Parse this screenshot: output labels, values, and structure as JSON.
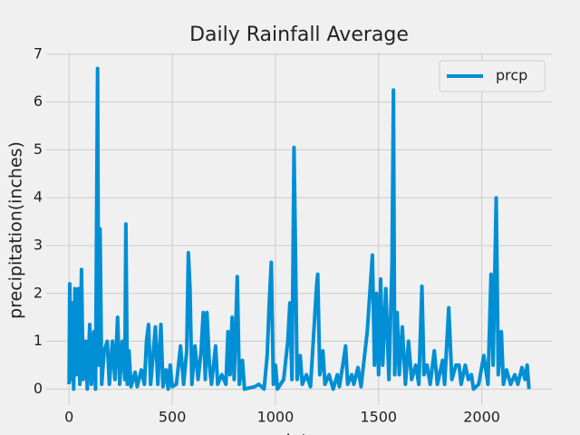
{
  "chart_data": {
    "type": "line",
    "title": "Daily Rainfall Average",
    "xlabel": "date",
    "ylabel": "precipitation(inches)",
    "x": [
      0,
      3,
      8,
      15,
      22,
      28,
      35,
      45,
      52,
      60,
      68,
      80,
      88,
      100,
      108,
      120,
      128,
      138,
      143,
      150,
      158,
      170,
      185,
      195,
      210,
      222,
      235,
      245,
      258,
      270,
      275,
      282,
      290,
      300,
      320,
      330,
      350,
      365,
      375,
      385,
      395,
      405,
      418,
      430,
      445,
      455,
      470,
      480,
      490,
      500,
      520,
      540,
      555,
      570,
      578,
      586,
      595,
      610,
      625,
      640,
      650,
      660,
      668,
      680,
      690,
      710,
      720,
      740,
      760,
      770,
      780,
      790,
      800,
      815,
      825,
      840,
      850,
      900,
      920,
      945,
      960,
      970,
      980,
      990,
      1000,
      1010,
      1040,
      1060,
      1070,
      1080,
      1090,
      1097,
      1105,
      1120,
      1130,
      1150,
      1170,
      1200,
      1205,
      1215,
      1230,
      1240,
      1260,
      1280,
      1300,
      1310,
      1330,
      1340,
      1350,
      1370,
      1380,
      1400,
      1415,
      1445,
      1470,
      1480,
      1490,
      1500,
      1510,
      1520,
      1535,
      1550,
      1565,
      1572,
      1578,
      1590,
      1600,
      1615,
      1630,
      1645,
      1660,
      1680,
      1695,
      1710,
      1720,
      1735,
      1750,
      1770,
      1785,
      1810,
      1820,
      1840,
      1855,
      1875,
      1890,
      1900,
      1920,
      1935,
      1950,
      1960,
      1985,
      2010,
      2030,
      2045,
      2055,
      2070,
      2080,
      2095,
      2105,
      2120,
      2140,
      2160,
      2175,
      2195,
      2210,
      2220,
      2229
    ],
    "series": [
      {
        "name": "prcp",
        "color": "#008fd5",
        "values": [
          0.1,
          2.2,
          0.2,
          1.8,
          0.0,
          2.1,
          0.3,
          2.1,
          0.1,
          2.5,
          0.2,
          1.0,
          0.0,
          1.35,
          0.1,
          1.2,
          0.0,
          6.7,
          0.5,
          3.35,
          0.1,
          0.8,
          1.0,
          0.1,
          1.0,
          0.2,
          1.5,
          0.1,
          1.0,
          0.2,
          3.45,
          0.1,
          0.8,
          0.05,
          0.35,
          0.05,
          0.4,
          0.1,
          1.0,
          1.35,
          0.1,
          0.6,
          1.3,
          0.1,
          1.35,
          0.05,
          0.4,
          0.0,
          0.5,
          0.05,
          0.1,
          0.9,
          0.1,
          0.8,
          2.85,
          2.1,
          0.1,
          0.9,
          0.2,
          0.8,
          1.6,
          0.2,
          1.6,
          0.5,
          0.1,
          0.9,
          0.1,
          0.3,
          0.1,
          1.2,
          0.3,
          1.5,
          0.2,
          2.35,
          0.1,
          0.6,
          0.0,
          0.05,
          0.1,
          0.0,
          0.7,
          1.8,
          2.65,
          0.1,
          0.5,
          0.0,
          0.2,
          1.0,
          1.8,
          0.2,
          5.05,
          2.9,
          0.2,
          0.7,
          0.1,
          0.3,
          0.05,
          2.2,
          2.4,
          0.3,
          0.8,
          0.1,
          0.3,
          0.0,
          0.3,
          0.05,
          0.6,
          0.9,
          0.1,
          0.3,
          0.1,
          0.45,
          0.05,
          1.2,
          2.8,
          0.5,
          2.0,
          0.3,
          2.3,
          0.5,
          2.1,
          0.2,
          2.6,
          6.25,
          0.3,
          1.6,
          0.3,
          1.3,
          0.1,
          1.0,
          0.2,
          0.5,
          0.1,
          2.15,
          0.3,
          0.5,
          0.1,
          0.8,
          0.1,
          0.6,
          0.1,
          1.7,
          0.2,
          0.5,
          0.5,
          0.1,
          0.5,
          0.2,
          0.3,
          0.0,
          0.1,
          0.7,
          0.1,
          2.4,
          0.5,
          4.0,
          0.3,
          1.2,
          0.1,
          0.4,
          0.1,
          0.3,
          0.1,
          0.45,
          0.2,
          0.5,
          0.0
        ]
      }
    ],
    "xlim": [
      -111,
      2340
    ],
    "ylim": [
      -0.335,
      7.035
    ],
    "xticks": [
      0,
      500,
      1000,
      1500,
      2000
    ],
    "yticks": [
      0,
      1,
      2,
      3,
      4,
      5,
      6,
      7
    ],
    "grid": true,
    "legend": "upper right"
  }
}
